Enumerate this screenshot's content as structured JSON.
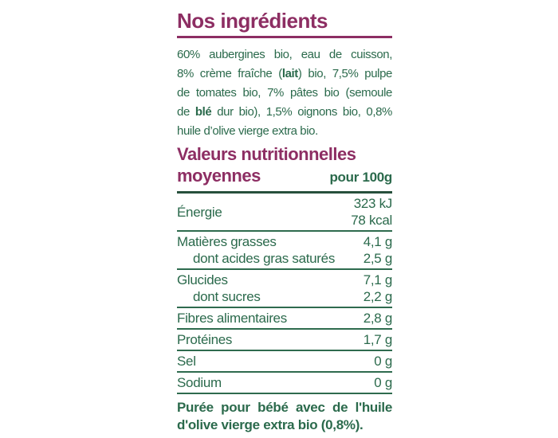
{
  "colors": {
    "magenta": "#8d2e63",
    "green": "#2b6a4c",
    "rule_green": "#2e6b4e",
    "rule_dark": "#27503c"
  },
  "ingredients_section": {
    "title": "Nos ingrédients",
    "lines": [
      {
        "justify": true,
        "segments": [
          {
            "t": "60% aubergines bio, eau de cuisson,",
            "b": false
          }
        ]
      },
      {
        "justify": true,
        "segments": [
          {
            "t": "8% crème fraîche (",
            "b": false
          },
          {
            "t": "lait",
            "b": true
          },
          {
            "t": ") bio, 7,5% pulpe",
            "b": false
          }
        ]
      },
      {
        "justify": true,
        "segments": [
          {
            "t": "de tomates bio, 7% pâtes bio (semoule",
            "b": false
          }
        ]
      },
      {
        "justify": true,
        "segments": [
          {
            "t": "de ",
            "b": false
          },
          {
            "t": "blé",
            "b": true
          },
          {
            "t": " dur bio), 1,5% oignons bio, 0,8%",
            "b": false
          }
        ]
      },
      {
        "justify": false,
        "segments": [
          {
            "t": "huile d’olive vierge extra bio.",
            "b": false
          }
        ]
      }
    ]
  },
  "nutrition_section": {
    "title_line1": "Valeurs nutritionnelles",
    "title_line2": "moyennes",
    "column_header": "pour 100g",
    "groups": [
      {
        "lines": [
          {
            "label": "Énergie",
            "indent": false,
            "values": [
              "323 kJ",
              "78 kcal"
            ]
          }
        ]
      },
      {
        "lines": [
          {
            "label": "Matières grasses",
            "indent": false,
            "values": [
              "4,1 g"
            ]
          },
          {
            "label": "dont acides gras saturés",
            "indent": true,
            "values": [
              "2,5 g"
            ]
          }
        ]
      },
      {
        "lines": [
          {
            "label": "Glucides",
            "indent": false,
            "values": [
              "7,1 g"
            ]
          },
          {
            "label": "dont sucres",
            "indent": true,
            "values": [
              "2,2 g"
            ]
          }
        ]
      },
      {
        "lines": [
          {
            "label": "Fibres alimentaires",
            "indent": false,
            "values": [
              "2,8 g"
            ]
          }
        ]
      },
      {
        "lines": [
          {
            "label": "Protéines",
            "indent": false,
            "values": [
              "1,7 g"
            ]
          }
        ]
      },
      {
        "lines": [
          {
            "label": "Sel",
            "indent": false,
            "values": [
              "0 g"
            ]
          }
        ]
      },
      {
        "lines": [
          {
            "label": "Sodium",
            "indent": false,
            "values": [
              "0 g"
            ]
          }
        ]
      }
    ]
  },
  "footer_note": {
    "lines": [
      "Purée pour bébé avec de l'huile",
      "d'olive vierge extra bio (0,8%)."
    ]
  }
}
